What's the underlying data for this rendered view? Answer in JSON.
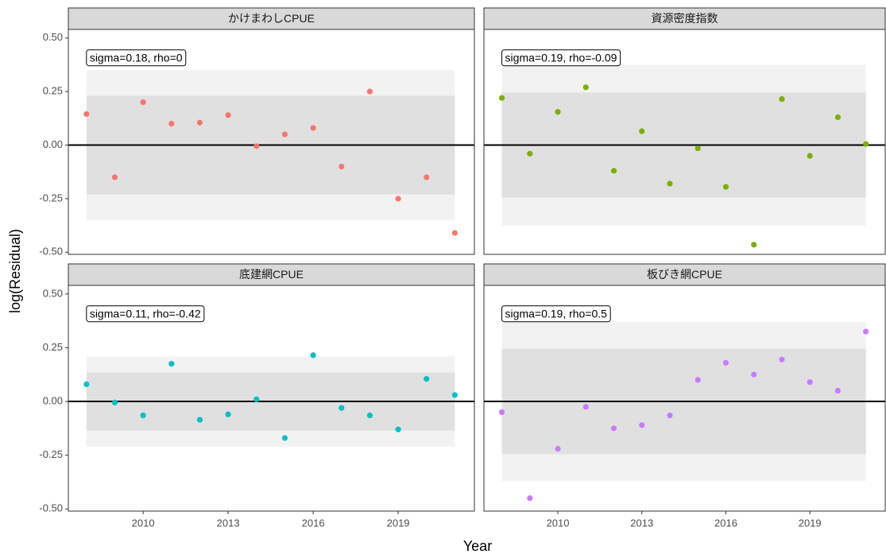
{
  "xlabel": "Year",
  "ylabel": "log(Residual)",
  "chart_data": [
    {
      "type": "scatter",
      "title": "かけまわしCPUE",
      "annotation": "sigma=0.18, rho=0",
      "color": "#F8766D",
      "x": [
        2008,
        2009,
        2010,
        2011,
        2012,
        2013,
        2014,
        2015,
        2016,
        2017,
        2018,
        2019,
        2020,
        2021
      ],
      "values": [
        0.145,
        -0.15,
        0.2,
        0.1,
        0.105,
        0.14,
        -0.005,
        0.05,
        0.08,
        -0.1,
        0.25,
        -0.25,
        -0.15,
        -0.41
      ],
      "bands": [
        [
          -0.35,
          0.35
        ],
        [
          -0.23,
          0.23
        ]
      ],
      "hline": 0,
      "xlim": [
        2007.36,
        2021.69
      ],
      "ylim": [
        -0.51,
        0.54
      ],
      "yticks": [
        {
          "value": -0.5,
          "label": "-0.50"
        },
        {
          "value": -0.25,
          "label": "-0.25"
        },
        {
          "value": 0,
          "label": "0.00"
        },
        {
          "value": 0.25,
          "label": "0.25"
        },
        {
          "value": 0.5,
          "label": "0.50"
        }
      ]
    },
    {
      "type": "scatter",
      "title": "資源密度指数",
      "annotation": "sigma=0.19, rho=-0.09",
      "color": "#7CAE00",
      "x": [
        2008,
        2009,
        2010,
        2011,
        2012,
        2013,
        2014,
        2015,
        2016,
        2017,
        2018,
        2019,
        2020,
        2021
      ],
      "values": [
        0.22,
        -0.04,
        0.155,
        0.27,
        -0.12,
        0.065,
        -0.18,
        -0.015,
        -0.195,
        -0.465,
        0.215,
        -0.05,
        0.13,
        0.005
      ],
      "bands": [
        [
          -0.375,
          0.375
        ],
        [
          -0.245,
          0.245
        ]
      ],
      "hline": 0,
      "xlim": [
        2007.36,
        2021.69
      ],
      "ylim": [
        -0.51,
        0.54
      ]
    },
    {
      "type": "scatter",
      "title": "底建網CPUE",
      "annotation": "sigma=0.11, rho=-0.42",
      "color": "#00BFC4",
      "x": [
        2008,
        2009,
        2010,
        2011,
        2012,
        2013,
        2014,
        2015,
        2016,
        2017,
        2018,
        2019,
        2020,
        2021
      ],
      "values": [
        0.08,
        -0.005,
        -0.065,
        0.175,
        -0.085,
        -0.06,
        0.01,
        -0.17,
        0.215,
        -0.03,
        -0.065,
        -0.13,
        0.105,
        0.03
      ],
      "bands": [
        [
          -0.21,
          0.21
        ],
        [
          -0.135,
          0.135
        ]
      ],
      "hline": 0,
      "xlim": [
        2007.36,
        2021.69
      ],
      "ylim": [
        -0.51,
        0.54
      ],
      "yticks": [
        {
          "value": -0.5,
          "label": "-0.50"
        },
        {
          "value": -0.25,
          "label": "-0.25"
        },
        {
          "value": 0,
          "label": "0.00"
        },
        {
          "value": 0.25,
          "label": "0.25"
        },
        {
          "value": 0.5,
          "label": "0.50"
        }
      ],
      "xticks": [
        2010,
        2013,
        2016,
        2019
      ]
    },
    {
      "type": "scatter",
      "title": "板びき網CPUE",
      "annotation": "sigma=0.19, rho=0.5",
      "color": "#C77CFF",
      "x": [
        2008,
        2009,
        2010,
        2011,
        2012,
        2013,
        2014,
        2015,
        2016,
        2017,
        2018,
        2019,
        2020,
        2021
      ],
      "values": [
        -0.05,
        -0.45,
        -0.22,
        -0.025,
        -0.125,
        -0.11,
        -0.065,
        0.1,
        0.18,
        0.125,
        0.195,
        0.09,
        0.05,
        0.325
      ],
      "bands": [
        [
          -0.37,
          0.37
        ],
        [
          -0.245,
          0.245
        ]
      ],
      "hline": 0,
      "xlim": [
        2007.36,
        2021.69
      ],
      "ylim": [
        -0.51,
        0.54
      ],
      "xticks": [
        2010,
        2013,
        2016,
        2019
      ]
    }
  ]
}
